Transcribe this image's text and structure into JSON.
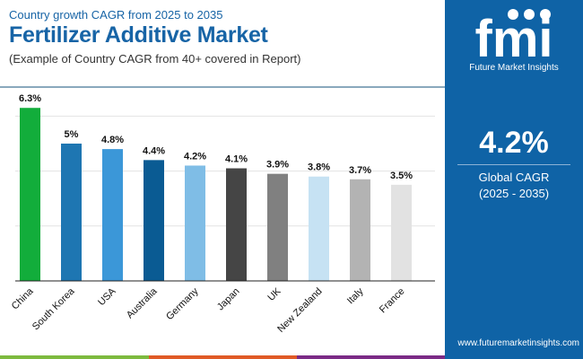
{
  "header": {
    "subtitle": "Country growth CAGR from 2025 to 2035",
    "title": "Fertilizer Additive Market",
    "note": "(Example of Country CAGR from 40+ covered in Report)"
  },
  "panel": {
    "brand": "Future Market Insights",
    "logo_text": "fmi",
    "global_value": "4.2%",
    "global_label": "Global CAGR",
    "global_period": "(2025 - 2035)",
    "url": "www.futuremarketinsights.com",
    "background": "#0f63a6"
  },
  "chart_data": {
    "type": "bar",
    "categories": [
      "China",
      "South Korea",
      "USA",
      "Australia",
      "Germany",
      "Japan",
      "UK",
      "New Zealand",
      "Italy",
      "France"
    ],
    "values": [
      6.3,
      5,
      4.8,
      4.4,
      4.2,
      4.1,
      3.9,
      3.8,
      3.7,
      3.5
    ],
    "labels": [
      "6.3%",
      "5%",
      "4.8%",
      "4.4%",
      "4.2%",
      "4.1%",
      "3.9%",
      "3.8%",
      "3.7%",
      "3.5%"
    ],
    "colors": [
      "#12ad3b",
      "#1e76b2",
      "#3b97d8",
      "#0a5b93",
      "#7fbde6",
      "#454545",
      "#808080",
      "#c6e2f3",
      "#b3b3b3",
      "#e2e2e2"
    ],
    "ylim": [
      0,
      6.5
    ],
    "grid": true,
    "gridlines": [
      2,
      4,
      6
    ],
    "xlabel": "",
    "ylabel": ""
  }
}
